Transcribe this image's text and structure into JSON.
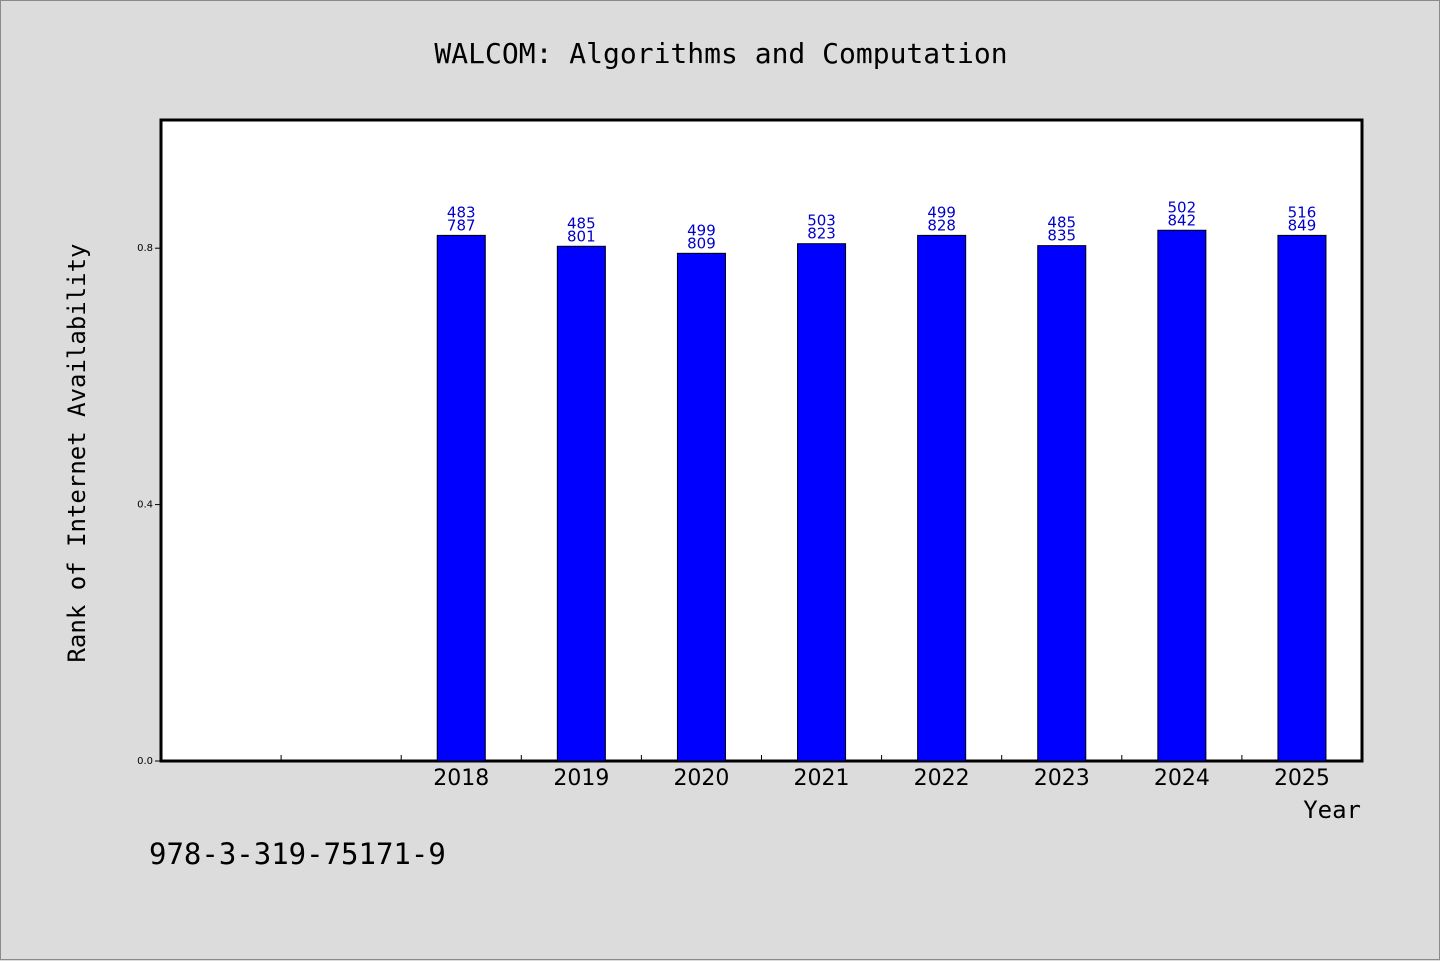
{
  "chart_data": {
    "type": "bar",
    "title": "WALCOM: Algorithms and Computation",
    "xlabel": "Year",
    "ylabel": "Rank of Internet Availability",
    "categories": [
      "2018",
      "2019",
      "2020",
      "2021",
      "2022",
      "2023",
      "2024",
      "2025"
    ],
    "values": [
      0.82,
      0.803,
      0.792,
      0.807,
      0.82,
      0.804,
      0.828,
      0.82
    ],
    "data_labels": [
      [
        "483",
        "787"
      ],
      [
        "485",
        "801"
      ],
      [
        "499",
        "809"
      ],
      [
        "503",
        "823"
      ],
      [
        "499",
        "828"
      ],
      [
        "485",
        "835"
      ],
      [
        "502",
        "842"
      ],
      [
        "516",
        "849"
      ]
    ],
    "ylim": [
      0,
      1.0
    ],
    "yticks": [
      0.0,
      0.4,
      0.8
    ],
    "ytick_labels": [
      "0.0",
      "0.4",
      "0.8"
    ],
    "empty_leading_slots": 2,
    "grid": false,
    "colors": {
      "bar": "#0000ff",
      "label": "#0000cc",
      "plot_bg": "#ffffff",
      "page_bg": "#dcdcdc"
    }
  },
  "footer": {
    "isbn": "978-3-319-75171-9"
  }
}
